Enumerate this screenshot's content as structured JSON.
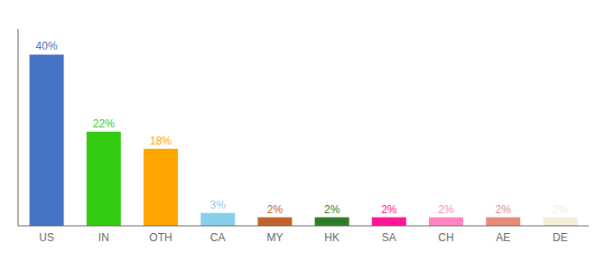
{
  "chart_data": {
    "type": "bar",
    "categories": [
      "US",
      "IN",
      "OTH",
      "CA",
      "MY",
      "HK",
      "SA",
      "CH",
      "AE",
      "DE"
    ],
    "values": [
      40,
      22,
      18,
      3,
      2,
      2,
      2,
      2,
      2,
      2
    ],
    "value_labels": [
      "40%",
      "22%",
      "18%",
      "3%",
      "2%",
      "2%",
      "2%",
      "2%",
      "2%",
      "2%"
    ],
    "colors": [
      "#4472C4",
      "#33CC11",
      "#FFA500",
      "#87CEEB",
      "#C0622A",
      "#2D7A27",
      "#FF1493",
      "#FF85C2",
      "#E8897A",
      "#F0EDD8"
    ],
    "ylim": [
      0,
      46
    ],
    "data_labels": true,
    "tick_labels": "x",
    "grid": false
  }
}
